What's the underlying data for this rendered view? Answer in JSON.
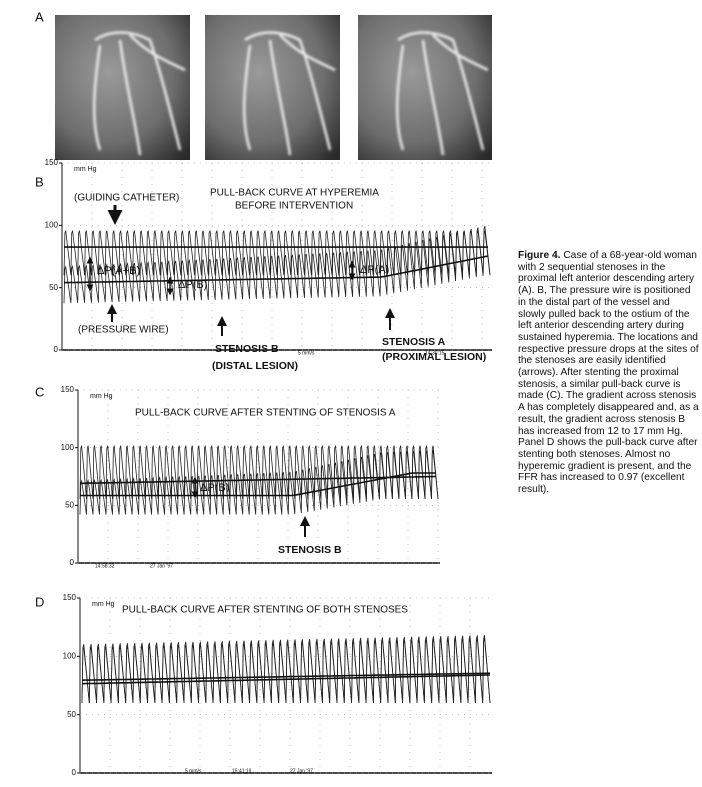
{
  "panel_a": {
    "label": "A"
  },
  "panel_b": {
    "label": "B",
    "unit": "mm Hg",
    "ylim": [
      0,
      150
    ],
    "yticks": [
      0,
      50,
      100,
      150
    ],
    "annotations": [
      "PULL-BACK CURVE AT HYPEREMIA",
      "BEFORE  INTERVENTION",
      "(GUIDING CATHETER)",
      "ΔP(A+B)",
      "ΔP(B)",
      "ΔP(A)",
      "(PRESSURE WIRE)",
      "STENOSIS B",
      "(DISTAL LESION)",
      "STENOSIS A",
      "(PROXIMAL LESION)",
      "5 mm/s",
      "14:30:15"
    ]
  },
  "panel_c": {
    "label": "C",
    "unit": "mm Hg",
    "ylim": [
      0,
      150
    ],
    "yticks": [
      0,
      50,
      100,
      150
    ],
    "annotations": [
      "PULL-BACK CURVE AFTER STENTING OF STENOSIS A",
      "ΔP(B)",
      "STENOSIS B",
      "14:58:32",
      "27 Jan '97"
    ]
  },
  "panel_d": {
    "label": "D",
    "unit": "mm Hg",
    "ylim": [
      0,
      150
    ],
    "yticks": [
      0,
      50,
      100,
      150
    ],
    "annotations": [
      "PULL-BACK CURVE AFTER  STENTING OF BOTH STENOSES",
      "5 mm/s",
      "15:41:19",
      "27 Jan '97"
    ]
  },
  "caption": {
    "label": "Figure  4.",
    "text": "Case of a 68-year-old woman with 2 sequential stenoses in the proximal left anterior descending artery (A). B, The pressure wire is positioned in the distal part of the vessel and slowly pulled back to the ostium of the left anterior descending artery during sustained hyperemia. The locations and respective pressure drops at the sites of the stenoses are easily identified (arrows). After stenting the proximal stenosis, a similar pull-back curve is made (C). The gradient across stenosis A has completely disappeared and, as a result, the gradient across stenosis B has increased from 12 to 17 mm Hg. Panel D shows the pull-back curve after stenting both stenoses. Almost no hyperemic gradient is present, and the FFR has increased to 0.97 (excellent result)."
  }
}
